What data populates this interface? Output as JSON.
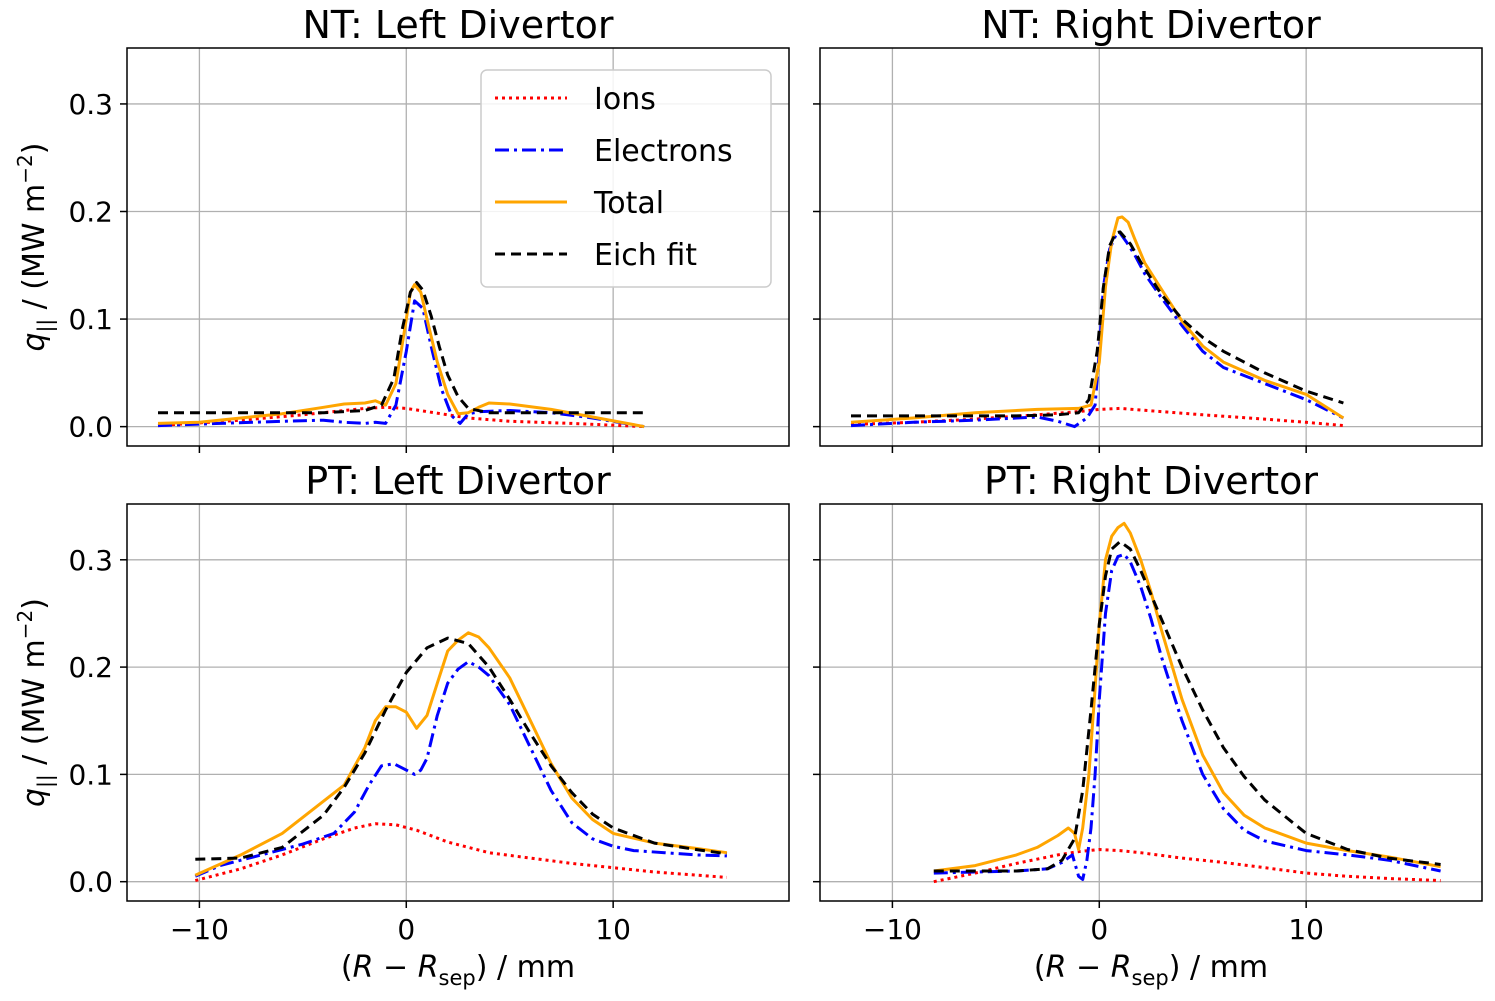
{
  "figure": {
    "rows": 2,
    "cols": 2,
    "sharex": true,
    "sharey": true
  },
  "legend": {
    "location": "upper right of top-left panel",
    "entries": [
      {
        "label": "Ions",
        "color": "#ff0000",
        "style": "dotted"
      },
      {
        "label": "Electrons",
        "color": "#0000ff",
        "style": "dashdot"
      },
      {
        "label": "Total",
        "color": "#ffa500",
        "style": "solid"
      },
      {
        "label": "Eich fit",
        "color": "#000000",
        "style": "dashed"
      }
    ]
  },
  "chart_data": [
    {
      "type": "line",
      "title": "NT: Left Divertor",
      "xlabel": "",
      "ylabel": "q|| / (MW m−2)",
      "xlim": [
        -13.5,
        18.5
      ],
      "ylim": [
        -0.018,
        0.352
      ],
      "xticks": [
        -10,
        0,
        10
      ],
      "yticks": [
        0.0,
        0.1,
        0.2,
        0.3
      ],
      "xticklabels": [],
      "yticklabels": [
        "0.0",
        "0.1",
        "0.2",
        "0.3"
      ],
      "grid": true,
      "series": [
        {
          "name": "Ions",
          "x": [
            -12,
            -8,
            -5,
            -3,
            -2,
            -1,
            0,
            1,
            2,
            3,
            5,
            8,
            11.5
          ],
          "y": [
            0.001,
            0.006,
            0.011,
            0.015,
            0.017,
            0.018,
            0.017,
            0.014,
            0.011,
            0.008,
            0.005,
            0.003,
            0.0
          ]
        },
        {
          "name": "Electrons",
          "x": [
            -12,
            -9,
            -6,
            -4,
            -3,
            -2,
            -1.5,
            -1,
            -0.5,
            0,
            0.4,
            0.8,
            1.2,
            1.7,
            2.2,
            2.6,
            3,
            3.6,
            5,
            7,
            9,
            11.5
          ],
          "y": [
            0.001,
            0.003,
            0.005,
            0.006,
            0.004,
            0.003,
            0.004,
            0.003,
            0.02,
            0.07,
            0.117,
            0.11,
            0.075,
            0.035,
            0.01,
            0.003,
            0.012,
            0.014,
            0.015,
            0.013,
            0.008,
            0.0
          ]
        },
        {
          "name": "Total",
          "x": [
            -12,
            -10,
            -8,
            -6,
            -4,
            -3,
            -2,
            -1.5,
            -1,
            -0.5,
            0,
            0.2,
            0.4,
            0.7,
            1,
            1.5,
            2,
            2.5,
            3,
            3.5,
            4,
            5,
            7,
            9,
            11.5
          ],
          "y": [
            0.003,
            0.004,
            0.008,
            0.012,
            0.018,
            0.021,
            0.022,
            0.024,
            0.02,
            0.04,
            0.1,
            0.125,
            0.132,
            0.125,
            0.1,
            0.06,
            0.03,
            0.012,
            0.013,
            0.018,
            0.022,
            0.021,
            0.016,
            0.009,
            0.0
          ]
        },
        {
          "name": "Eich fit",
          "x": [
            -12,
            -8,
            -4,
            -2,
            -1.2,
            -0.6,
            -0.2,
            0.2,
            0.5,
            0.8,
            1.2,
            1.6,
            2,
            2.5,
            3,
            4,
            6,
            8,
            11.5
          ],
          "y": [
            0.013,
            0.013,
            0.013,
            0.015,
            0.02,
            0.045,
            0.09,
            0.125,
            0.134,
            0.127,
            0.103,
            0.074,
            0.048,
            0.028,
            0.017,
            0.013,
            0.013,
            0.013,
            0.013
          ]
        }
      ]
    },
    {
      "type": "line",
      "title": "NT: Right Divertor",
      "xlabel": "",
      "ylabel": "",
      "xlim": [
        -13.5,
        18.5
      ],
      "ylim": [
        -0.018,
        0.352
      ],
      "xticks": [
        -10,
        0,
        10
      ],
      "yticks": [
        0.0,
        0.1,
        0.2,
        0.3
      ],
      "xticklabels": [],
      "yticklabels": [],
      "grid": true,
      "series": [
        {
          "name": "Ions",
          "x": [
            -12,
            -9,
            -6,
            -3,
            -1,
            0,
            1,
            3,
            5,
            8,
            10,
            11.8
          ],
          "y": [
            0.002,
            0.004,
            0.007,
            0.011,
            0.014,
            0.016,
            0.017,
            0.014,
            0.011,
            0.007,
            0.004,
            0.001
          ]
        },
        {
          "name": "Electrons",
          "x": [
            -12,
            -9,
            -6,
            -4,
            -3,
            -2,
            -1.2,
            -0.6,
            -0.2,
            0,
            0.2,
            0.5,
            0.8,
            1,
            1.3,
            1.7,
            2.2,
            3,
            4,
            5,
            6,
            8,
            10,
            11.8
          ],
          "y": [
            0.001,
            0.004,
            0.006,
            0.008,
            0.009,
            0.005,
            0.0,
            0.008,
            0.02,
            0.07,
            0.13,
            0.165,
            0.178,
            0.18,
            0.172,
            0.16,
            0.142,
            0.12,
            0.094,
            0.07,
            0.055,
            0.04,
            0.025,
            0.008
          ]
        },
        {
          "name": "Total",
          "x": [
            -12,
            -9,
            -6,
            -3,
            -1,
            -0.4,
            0,
            0.3,
            0.6,
            0.9,
            1.1,
            1.4,
            1.7,
            2.2,
            3,
            4,
            5,
            6,
            8,
            10,
            11.8
          ],
          "y": [
            0.004,
            0.008,
            0.013,
            0.016,
            0.017,
            0.02,
            0.06,
            0.13,
            0.172,
            0.194,
            0.195,
            0.19,
            0.175,
            0.152,
            0.128,
            0.098,
            0.075,
            0.06,
            0.043,
            0.03,
            0.008
          ]
        },
        {
          "name": "Eich fit",
          "x": [
            -12,
            -8,
            -4,
            -2,
            -1,
            -0.5,
            -0.1,
            0.2,
            0.5,
            0.8,
            1,
            1.5,
            2,
            3,
            4,
            5,
            6,
            8,
            10,
            11.8
          ],
          "y": [
            0.01,
            0.01,
            0.01,
            0.011,
            0.013,
            0.025,
            0.07,
            0.13,
            0.168,
            0.18,
            0.181,
            0.17,
            0.153,
            0.123,
            0.1,
            0.083,
            0.07,
            0.05,
            0.033,
            0.022
          ]
        }
      ]
    },
    {
      "type": "line",
      "title": "PT: Left Divertor",
      "xlabel": "(R − Rsep) / mm",
      "ylabel": "q|| / (MW m−2)",
      "xlim": [
        -13.5,
        18.5
      ],
      "ylim": [
        -0.018,
        0.352
      ],
      "xticks": [
        -10,
        0,
        10
      ],
      "yticks": [
        0.0,
        0.1,
        0.2,
        0.3
      ],
      "xticklabels": [
        "−10",
        "0",
        "10"
      ],
      "yticklabels": [
        "0.0",
        "0.1",
        "0.2",
        "0.3"
      ],
      "grid": true,
      "series": [
        {
          "name": "Ions",
          "x": [
            -10.2,
            -8,
            -6,
            -4,
            -2.5,
            -1.5,
            -0.5,
            0.5,
            2,
            4,
            6,
            8,
            10,
            12,
            15.5
          ],
          "y": [
            0.001,
            0.012,
            0.025,
            0.04,
            0.05,
            0.054,
            0.053,
            0.048,
            0.037,
            0.027,
            0.022,
            0.017,
            0.013,
            0.009,
            0.004
          ]
        },
        {
          "name": "Electrons",
          "x": [
            -10.2,
            -9,
            -7,
            -5,
            -3.5,
            -2.5,
            -1.8,
            -1.2,
            -0.6,
            0,
            0.4,
            0.7,
            1,
            1.5,
            2,
            2.5,
            3,
            3.5,
            4,
            5,
            6,
            7,
            8,
            9,
            10,
            11,
            12.5,
            14,
            15.5
          ],
          "y": [
            0.005,
            0.015,
            0.025,
            0.035,
            0.045,
            0.065,
            0.09,
            0.108,
            0.11,
            0.104,
            0.1,
            0.104,
            0.115,
            0.155,
            0.185,
            0.198,
            0.205,
            0.2,
            0.192,
            0.165,
            0.125,
            0.085,
            0.055,
            0.04,
            0.033,
            0.029,
            0.027,
            0.025,
            0.024
          ]
        },
        {
          "name": "Total",
          "x": [
            -10.2,
            -8,
            -6,
            -4,
            -3,
            -2,
            -1.5,
            -1,
            -0.5,
            0,
            0.5,
            1,
            1.5,
            2,
            2.5,
            3,
            3.5,
            4,
            5,
            6,
            7,
            8,
            9,
            10,
            12,
            14,
            15.5
          ],
          "y": [
            0.006,
            0.025,
            0.045,
            0.075,
            0.09,
            0.125,
            0.15,
            0.163,
            0.163,
            0.158,
            0.143,
            0.155,
            0.185,
            0.215,
            0.225,
            0.232,
            0.228,
            0.218,
            0.19,
            0.15,
            0.11,
            0.078,
            0.058,
            0.045,
            0.036,
            0.031,
            0.027
          ]
        },
        {
          "name": "Eich fit",
          "x": [
            -10.2,
            -8,
            -6,
            -4,
            -3,
            -2,
            -1,
            0,
            1,
            2,
            3,
            4,
            5,
            6,
            7,
            8,
            9,
            10,
            12,
            14,
            15.5
          ],
          "y": [
            0.021,
            0.022,
            0.032,
            0.062,
            0.088,
            0.12,
            0.16,
            0.195,
            0.218,
            0.227,
            0.222,
            0.2,
            0.17,
            0.138,
            0.108,
            0.083,
            0.063,
            0.05,
            0.036,
            0.03,
            0.026
          ]
        }
      ]
    },
    {
      "type": "line",
      "title": "PT: Right Divertor",
      "xlabel": "(R − Rsep) / mm",
      "ylabel": "",
      "xlim": [
        -13.5,
        18.5
      ],
      "ylim": [
        -0.018,
        0.352
      ],
      "xticks": [
        -10,
        0,
        10
      ],
      "yticks": [
        0.0,
        0.1,
        0.2,
        0.3
      ],
      "xticklabels": [
        "−10",
        "0",
        "10"
      ],
      "yticklabels": [],
      "grid": true,
      "series": [
        {
          "name": "Ions",
          "x": [
            -8,
            -6,
            -4,
            -2,
            -1,
            0,
            1,
            2,
            4,
            6,
            8,
            10,
            12,
            14,
            16.5
          ],
          "y": [
            0.0,
            0.008,
            0.017,
            0.025,
            0.028,
            0.03,
            0.029,
            0.027,
            0.022,
            0.018,
            0.013,
            0.008,
            0.005,
            0.003,
            0.001
          ]
        },
        {
          "name": "Electrons",
          "x": [
            -8,
            -6,
            -4,
            -2.5,
            -1.8,
            -1.3,
            -1,
            -0.8,
            -0.6,
            -0.4,
            -0.2,
            0,
            0.3,
            0.6,
            0.9,
            1.2,
            1.5,
            2,
            2.5,
            3,
            4,
            5,
            6,
            7,
            8,
            10,
            12,
            14,
            16.5
          ],
          "y": [
            0.008,
            0.009,
            0.01,
            0.012,
            0.018,
            0.025,
            0.005,
            0.002,
            0.02,
            0.05,
            0.1,
            0.17,
            0.25,
            0.29,
            0.303,
            0.305,
            0.298,
            0.275,
            0.245,
            0.21,
            0.15,
            0.1,
            0.068,
            0.048,
            0.038,
            0.029,
            0.025,
            0.02,
            0.01
          ]
        },
        {
          "name": "Total",
          "x": [
            -8,
            -6,
            -4,
            -3,
            -2,
            -1.5,
            -1.2,
            -1,
            -0.8,
            -0.5,
            -0.2,
            0,
            0.3,
            0.6,
            0.9,
            1.2,
            1.5,
            2,
            2.5,
            3,
            4,
            5,
            6,
            7,
            8,
            10,
            12,
            14,
            16.5
          ],
          "y": [
            0.01,
            0.015,
            0.025,
            0.032,
            0.043,
            0.05,
            0.045,
            0.03,
            0.05,
            0.1,
            0.18,
            0.24,
            0.3,
            0.322,
            0.33,
            0.334,
            0.325,
            0.3,
            0.27,
            0.235,
            0.17,
            0.118,
            0.083,
            0.062,
            0.05,
            0.036,
            0.029,
            0.023,
            0.014
          ]
        },
        {
          "name": "Eich fit",
          "x": [
            -8,
            -6,
            -4,
            -2.5,
            -1.8,
            -1.2,
            -0.8,
            -0.4,
            0,
            0.3,
            0.6,
            1,
            1.5,
            2,
            3,
            4,
            5,
            6,
            7,
            8,
            10,
            12,
            14,
            16.5
          ],
          "y": [
            0.01,
            0.01,
            0.01,
            0.012,
            0.02,
            0.04,
            0.085,
            0.16,
            0.24,
            0.285,
            0.31,
            0.317,
            0.31,
            0.29,
            0.245,
            0.2,
            0.16,
            0.125,
            0.098,
            0.076,
            0.045,
            0.03,
            0.022,
            0.016
          ]
        }
      ]
    }
  ]
}
